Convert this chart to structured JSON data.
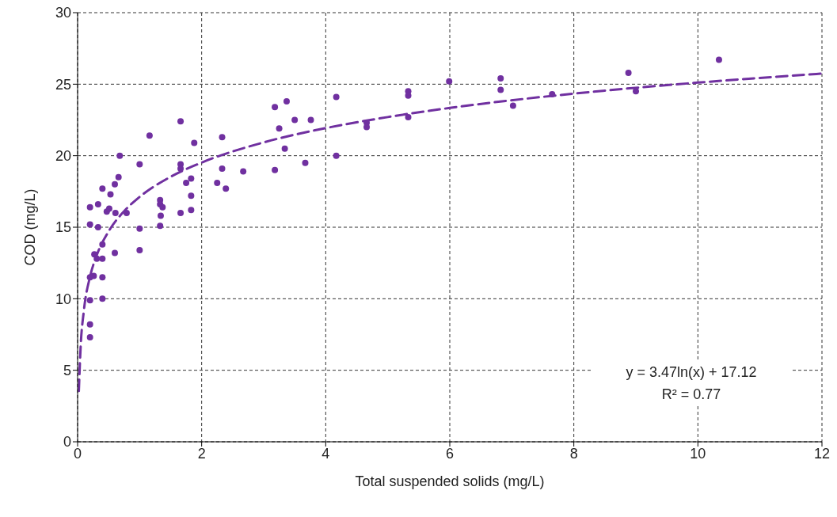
{
  "chart_data": {
    "type": "scatter",
    "xlabel": "Total suspended solids (mg/L)",
    "ylabel": "COD (mg/L)",
    "xlim": [
      0,
      12
    ],
    "xticks": [
      0,
      2,
      4,
      6,
      8,
      10,
      12
    ],
    "ylim": [
      0,
      30
    ],
    "yticks": [
      0,
      5,
      10,
      15,
      20,
      25,
      30
    ],
    "grid": true,
    "legend": false,
    "series": [
      {
        "color": "#7030a0",
        "marker": "circle",
        "x": [
          0.2,
          0.2,
          0.33,
          0.4,
          0.53,
          0.47,
          0.51,
          0.6,
          0.66,
          0.68,
          1.16,
          1.0,
          0.79,
          0.61,
          0.33,
          0.4,
          0.27,
          0.31,
          0.4,
          0.26,
          0.4,
          0.2,
          0.2,
          0.4,
          0.2,
          0.2,
          0.6,
          1.0,
          1.0,
          1.66,
          1.66,
          1.66,
          1.66,
          1.33,
          1.33,
          1.37,
          1.34,
          1.33,
          1.75,
          1.83,
          1.83,
          1.83,
          1.88,
          2.33,
          2.33,
          2.25,
          2.39,
          2.67,
          3.18,
          3.37,
          3.25,
          3.34,
          3.5,
          3.76,
          3.67,
          3.18,
          4.17,
          4.17,
          4.66,
          4.66,
          5.33,
          5.33,
          5.33,
          5.99,
          6.82,
          6.82,
          7.02,
          7.65,
          8.88,
          9.0,
          10.34
        ],
        "values": [
          16.4,
          15.2,
          16.6,
          17.7,
          17.3,
          16.1,
          16.3,
          18.0,
          18.5,
          20.0,
          21.4,
          19.4,
          16.0,
          16.0,
          15.0,
          13.8,
          13.1,
          12.8,
          12.8,
          11.6,
          11.5,
          11.5,
          9.9,
          10.0,
          8.2,
          7.3,
          13.2,
          14.9,
          13.4,
          22.4,
          19.4,
          19.1,
          16.0,
          16.9,
          16.6,
          16.4,
          15.8,
          15.1,
          18.1,
          18.4,
          17.2,
          16.2,
          20.9,
          21.3,
          19.1,
          18.1,
          17.7,
          18.9,
          23.4,
          23.8,
          21.9,
          20.5,
          22.5,
          22.5,
          19.5,
          19.0,
          24.1,
          20.0,
          22.3,
          22.0,
          24.5,
          24.2,
          22.7,
          25.2,
          25.4,
          24.6,
          23.5,
          24.3,
          25.8,
          24.5,
          26.7
        ]
      },
      {
        "type": "line",
        "color": "#7030a0",
        "line_style": "dashed",
        "marker": "none",
        "x": [
          0.02,
          0.05,
          0.1,
          0.2,
          0.3,
          0.5,
          0.75,
          1,
          1.5,
          2,
          3,
          4,
          5,
          6,
          8,
          10,
          12
        ],
        "values": [
          3.55,
          6.72,
          9.13,
          11.54,
          12.94,
          14.71,
          16.12,
          17.12,
          18.53,
          19.52,
          20.93,
          21.93,
          22.7,
          23.34,
          24.34,
          25.11,
          25.74
        ]
      }
    ],
    "annotations": [
      "y = 3.47ln(x) + 17.12",
      "R² = 0.77"
    ]
  }
}
